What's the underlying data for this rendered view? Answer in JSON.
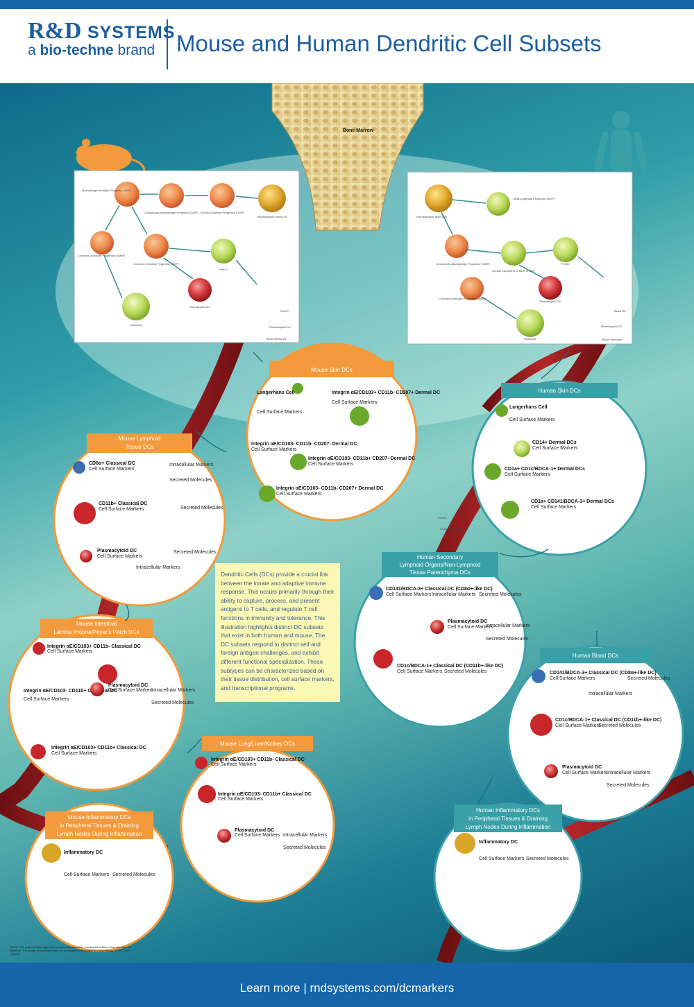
{
  "brand": {
    "line1": "R&D",
    "line1b": "SYSTEMS",
    "line2a": "a ",
    "line2b": "bio-techne",
    "line2c": " brand"
  },
  "title": "Mouse and Human Dendritic Cell Subsets",
  "footer": {
    "text": "Learn more  |  rndsystems.com/dcmarkers"
  },
  "bone_marrow": "Bone Marrow",
  "colors": {
    "blue": "#1565a8",
    "orange": "#f39a3c",
    "teal": "#3aa0a8",
    "blood": "#8e1a1a"
  },
  "mouse_lineage": {
    "hsc": "Hematopoietic Stem Cell",
    "cmp": "Common Myeloid Progenitor (CMP)",
    "gmp": "Granulocyte-Macrophage Progenitor (GMP)",
    "mdp": "Macrophage Dendritic Progenitor (MDP)",
    "cmop": "Common Monocyte Progenitor (cMoP)",
    "cdp": "Common Dendritic Progenitor (CDP)",
    "predc": "PreDC",
    "pdc": "Plasmacytoid DC",
    "monocyte": "Monocyte",
    "blood_predc": "PreDC",
    "blood_pdc": "Plasmacytoid DC",
    "blood_monocyte": "Blood Monocyte"
  },
  "human_lineage": {
    "hsc": "Hematopoietic Stem Cell",
    "mlp": "Multi-Lymphoid Progenitor (MLP)",
    "gmp": "Granulocyte-Macrophage Progenitor (GMP)",
    "mdp": "Human Equivalent of MDP or CDP",
    "cmop": "Common Monocyte Progenitor (cMoP)",
    "predc": "PreDC",
    "pdc": "Plasmacytoid DC",
    "monocyte": "Monocyte",
    "blood_dc": "Blood DC",
    "blood_pdc": "Plasmacytoid DC",
    "blood_monocyte": "Blood Monocyte"
  },
  "vessel_labels": {
    "predc_right": "PreDC",
    "predc_mid": "PreDC",
    "cd16": "CD16+ Monocyte"
  },
  "circles": {
    "mouse_skin": {
      "title": "Mouse Skin DCs",
      "subsets": [
        "Langerhans Cell",
        "Integrin αE/CD103+ CD11b- CD207+ Dermal DC",
        "Integrin αE/CD103- CD11b- CD207+ Dermal DC",
        "Integrin αE/CD103- CD11b+ CD207- Dermal DC",
        "Integrin αE/CD103- CD11b- CD207- Dermal DC"
      ]
    },
    "mouse_lymphoid": {
      "title1": "Mouse Lymphoid",
      "title2": "Tissue DCs",
      "subsets": [
        "CD8α+ Classical DC",
        "CD11b+ Classical DC",
        "Plasmacytoid DC"
      ]
    },
    "human_skin": {
      "title": "Human Skin DCs",
      "subsets": [
        "Langerhans Cell",
        "CD14+ Dermal DCs",
        "CD1a+ CD1c/BDCA-1+ Dermal DCs",
        "CD1a+ CD141/BDCA-3+ Dermal DCs"
      ]
    },
    "human_secondary": {
      "title1": "Human Secondary",
      "title2": "Lymphoid Organs/Non-Lymphoid",
      "title3": "Tissue Parenchyma DCs",
      "subsets": [
        "CD141/BDCA-3+ Classical DC (CD8α+-like DC)",
        "Plasmacytoid DC",
        "CD1c/BDCA-1+ Classical DC (CD11b+-like DC)"
      ]
    },
    "mouse_intestinal": {
      "title1": "Mouse Intestinal",
      "title2": "Lamina Propria/Peyer's Patch DCs",
      "subsets": [
        "Integrin αE/CD103+ CD11b- Classical DC",
        "Integrin αE/CD103- CD11b+ Classical DC",
        "Plasmacytoid DC",
        "Integrin αE/CD103+ CD11b+ Classical DC"
      ]
    },
    "human_blood": {
      "title": "Human Blood DCs",
      "subsets": [
        "CD141/BDCA-3+ Classical DC (CD8α+-like DC)",
        "CD1c/BDCA-1+ Classical DC (CD11b+-like DC)",
        "Plasmacytoid DC"
      ]
    },
    "mouse_lung": {
      "title": "Mouse Lung/Liver/Kidney DCs",
      "subsets": [
        "Integrin αE/CD103+ CD11b- Classical DC",
        "Integrin αE/CD103- CD11b+ Classical DC",
        "Plasmacytoid DC"
      ]
    },
    "mouse_inflam": {
      "title1": "Mouse Inflammatory DCs",
      "title2": "in Peripheral Tissues & Draining",
      "title3": "Lymph Nodes During Inflammation",
      "subsets": [
        "Inflammatory DC"
      ]
    },
    "human_inflam": {
      "title1": "Human Inflammatory DCs",
      "title2": "in Peripheral Tissues & Draining",
      "title3": "Lymph Nodes During Inflammation",
      "subsets": [
        "Inflammatory DC"
      ]
    }
  },
  "common_labels": {
    "csm": "Cell Surface Markers",
    "icm": "Intracellular Markers",
    "sm": "Secreted Molecules"
  },
  "description": "Dendritic Cells (DCs) provide a crucial link between the innate and adaptive immune response. This occurs primarily through their ability to capture, process, and present antigens to T cells, and regulate T cell functions in immunity and tolerance. This illustration highlights distinct DC subsets that exist in both human and mouse. The DC subsets respond to distinct self and foreign antigen challenges, and exhibit different functional specialization. These subtypes can be characterized based on their tissue distribution, cell surface markers, and transcriptional programs.",
  "note": "NOTE: This poster shows a general overview and should be considered neither comprehensive nor definitive. The details of this information are constantly to be subject to interpretation. © 2017 R&D Systems"
}
